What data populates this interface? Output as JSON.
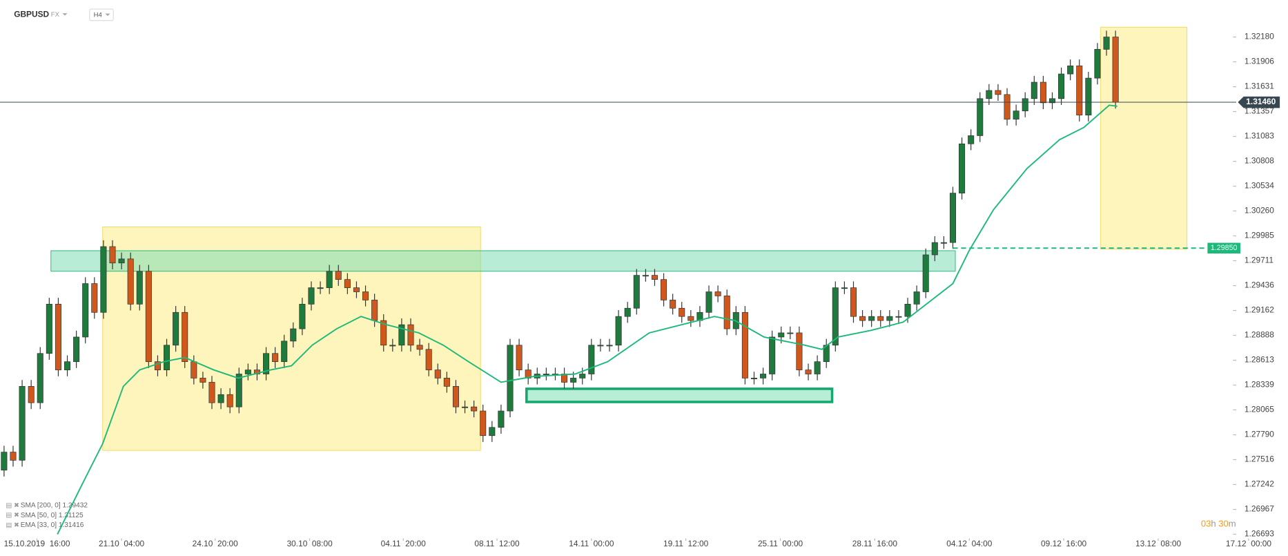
{
  "header": {
    "symbol": "GBPUSD",
    "market": "FX",
    "interval": "H4"
  },
  "chart_data": {
    "type": "candlestick",
    "open": [
      1.274,
      1.27599,
      1.27509,
      1.28325,
      1.28144,
      1.28688,
      1.29232,
      1.28506,
      1.28597,
      1.28869,
      1.29459,
      1.29141,
      1.29867,
      1.29686,
      1.29731,
      1.29232,
      1.29595,
      1.28597,
      1.28506,
      1.28779,
      1.29141,
      1.28597,
      1.28416,
      1.2837,
      1.28144,
      1.28234,
      1.28098,
      1.28461,
      1.28506,
      1.28461,
      1.28688,
      1.28597,
      1.28824,
      1.2896,
      1.29232,
      1.29413,
      1.29413,
      1.29595,
      1.29504,
      1.29413,
      1.29368,
      1.29277,
      1.29051,
      1.28779,
      1.28779,
      1.29005,
      1.28779,
      1.28733,
      1.28506,
      1.28416,
      1.28325,
      1.28098,
      1.28098,
      1.28053,
      1.27781,
      1.27872,
      1.28053,
      1.28779,
      1.28506,
      1.28416,
      1.28461,
      1.28461,
      1.28461,
      1.2837,
      1.28416,
      1.28461,
      1.28779,
      1.28779,
      1.28779,
      1.29096,
      1.29187,
      1.2955,
      1.2955,
      1.29504,
      1.29277,
      1.29187,
      1.29096,
      1.29051,
      1.29141,
      1.29368,
      1.29323,
      1.2896,
      1.29141,
      1.28416,
      1.28416,
      1.28461,
      1.28869,
      1.28915,
      1.28915,
      1.28506,
      1.28461,
      1.28597,
      1.28779,
      1.29413,
      1.29413,
      1.29096,
      1.29051,
      1.29096,
      1.29051,
      1.29096,
      1.29096,
      1.29232,
      1.29368,
      1.29776,
      1.29912,
      1.29912,
      1.30457,
      1.31001,
      1.31091,
      1.315,
      1.3159,
      1.31545,
      1.31273,
      1.31364,
      1.315,
      1.31681,
      1.31454,
      1.315,
      1.31772,
      1.31862,
      1.31318,
      1.31726,
      1.32044,
      1.3218
    ],
    "high": [
      1.27669,
      1.27669,
      1.28395,
      1.28395,
      1.28758,
      1.29302,
      1.29302,
      1.28667,
      1.28939,
      1.29529,
      1.29529,
      1.29937,
      1.29937,
      1.29801,
      1.29801,
      1.29665,
      1.29665,
      1.28667,
      1.28849,
      1.29211,
      1.29211,
      1.28667,
      1.28486,
      1.2844,
      1.28304,
      1.28304,
      1.28531,
      1.28576,
      1.28576,
      1.28758,
      1.28758,
      1.28894,
      1.2903,
      1.29302,
      1.29483,
      1.29483,
      1.29665,
      1.29665,
      1.29574,
      1.29483,
      1.29438,
      1.29347,
      1.29121,
      1.28849,
      1.29075,
      1.29075,
      1.28849,
      1.28803,
      1.28576,
      1.28486,
      1.28395,
      1.28168,
      1.28168,
      1.28123,
      1.27942,
      1.28123,
      1.28849,
      1.28849,
      1.28576,
      1.28531,
      1.28531,
      1.28531,
      1.28531,
      1.28486,
      1.28531,
      1.28849,
      1.28849,
      1.28849,
      1.29166,
      1.29257,
      1.2962,
      1.2962,
      1.2962,
      1.29574,
      1.29347,
      1.29257,
      1.29166,
      1.29211,
      1.29438,
      1.29438,
      1.29393,
      1.29211,
      1.29211,
      1.28486,
      1.28531,
      1.28939,
      1.28985,
      1.28985,
      1.28985,
      1.28576,
      1.28667,
      1.28849,
      1.29483,
      1.29483,
      1.29483,
      1.29166,
      1.29166,
      1.29166,
      1.29166,
      1.29166,
      1.29302,
      1.29438,
      1.29846,
      1.29982,
      1.29982,
      1.30527,
      1.31071,
      1.31161,
      1.3157,
      1.3166,
      1.3166,
      1.31615,
      1.31434,
      1.3157,
      1.31751,
      1.31751,
      1.3157,
      1.31842,
      1.31932,
      1.31932,
      1.31796,
      1.32114,
      1.3225,
      1.3225
    ],
    "low": [
      1.2733,
      1.27439,
      1.27439,
      1.28074,
      1.28074,
      1.28618,
      1.28436,
      1.28436,
      1.28527,
      1.28799,
      1.29071,
      1.29071,
      1.29616,
      1.29616,
      1.29162,
      1.29162,
      1.28527,
      1.28436,
      1.28436,
      1.28709,
      1.28527,
      1.28346,
      1.283,
      1.28074,
      1.28074,
      1.28028,
      1.28028,
      1.28391,
      1.28391,
      1.28391,
      1.28527,
      1.28527,
      1.28754,
      1.2889,
      1.29162,
      1.29343,
      1.29343,
      1.29434,
      1.29343,
      1.29298,
      1.29207,
      1.28981,
      1.28709,
      1.28709,
      1.28709,
      1.28709,
      1.28663,
      1.28436,
      1.28346,
      1.28255,
      1.28028,
      1.28028,
      1.27983,
      1.27711,
      1.27711,
      1.27802,
      1.27983,
      1.28436,
      1.28346,
      1.28346,
      1.28391,
      1.28391,
      1.283,
      1.283,
      1.28346,
      1.28391,
      1.28709,
      1.28709,
      1.28709,
      1.29026,
      1.29117,
      1.2948,
      1.29434,
      1.29207,
      1.29117,
      1.29026,
      1.28981,
      1.28981,
      1.29071,
      1.29253,
      1.2889,
      1.2889,
      1.28346,
      1.28346,
      1.28346,
      1.28391,
      1.28799,
      1.28845,
      1.28436,
      1.28391,
      1.28391,
      1.28527,
      1.28709,
      1.29343,
      1.29026,
      1.28981,
      1.28981,
      1.28981,
      1.28981,
      1.29026,
      1.29026,
      1.29162,
      1.29298,
      1.29706,
      1.29842,
      1.29842,
      1.30387,
      1.30931,
      1.31021,
      1.3143,
      1.31475,
      1.31203,
      1.31203,
      1.31294,
      1.3143,
      1.31384,
      1.31384,
      1.3143,
      1.31702,
      1.31248,
      1.31248,
      1.31656,
      1.31974,
      1.3139
    ],
    "close": [
      1.27599,
      1.27509,
      1.28325,
      1.28144,
      1.28688,
      1.29232,
      1.28506,
      1.28597,
      1.28869,
      1.29459,
      1.29141,
      1.29867,
      1.29686,
      1.29731,
      1.29232,
      1.29595,
      1.28597,
      1.28506,
      1.28779,
      1.29141,
      1.28597,
      1.28416,
      1.2837,
      1.28144,
      1.28234,
      1.28098,
      1.28461,
      1.28506,
      1.28461,
      1.28688,
      1.28597,
      1.28824,
      1.2896,
      1.29232,
      1.29413,
      1.29413,
      1.29595,
      1.29504,
      1.29413,
      1.29368,
      1.29277,
      1.29051,
      1.28779,
      1.28779,
      1.29005,
      1.28779,
      1.28733,
      1.28506,
      1.28416,
      1.28325,
      1.28098,
      1.28098,
      1.28053,
      1.27781,
      1.27872,
      1.28053,
      1.28779,
      1.28506,
      1.28416,
      1.28461,
      1.28461,
      1.28461,
      1.2837,
      1.28416,
      1.28461,
      1.28779,
      1.28779,
      1.28779,
      1.29096,
      1.29187,
      1.2955,
      1.2955,
      1.29504,
      1.29277,
      1.29187,
      1.29096,
      1.29051,
      1.29141,
      1.29368,
      1.29323,
      1.2896,
      1.29141,
      1.28416,
      1.28416,
      1.28461,
      1.28869,
      1.28915,
      1.28915,
      1.28506,
      1.28461,
      1.28597,
      1.28779,
      1.29413,
      1.29413,
      1.29096,
      1.29051,
      1.29096,
      1.29051,
      1.29096,
      1.29096,
      1.29232,
      1.29368,
      1.29776,
      1.29912,
      1.29912,
      1.30457,
      1.31001,
      1.31091,
      1.315,
      1.3159,
      1.31545,
      1.31273,
      1.31364,
      1.315,
      1.31681,
      1.31454,
      1.315,
      1.31772,
      1.31862,
      1.31318,
      1.31726,
      1.32044,
      1.3218,
      1.3146
    ],
    "up_color": "#1f7a3d",
    "down_color": "#d0581c",
    "ma": {
      "color": "#1db97a",
      "x": [
        5.9,
        8.6,
        10.9,
        13.2,
        15,
        17.7,
        20,
        23.2,
        25.9,
        29.5,
        31.8,
        34.1,
        36.8,
        39.5,
        42.3,
        45.9,
        48.6,
        51.4,
        55,
        58.6,
        63.2,
        66.8,
        71.4,
        75,
        78.6,
        80.9,
        84.1,
        88.6,
        90.5,
        92.3,
        95.9,
        99.5,
        102.3,
        105,
        106.8,
        109.5,
        113.2,
        116.8,
        119.5,
        122.3,
        123.2
      ],
      "values": [
        1.26692,
        1.27237,
        1.2769,
        1.28325,
        1.28506,
        1.28597,
        1.28643,
        1.28506,
        1.28416,
        1.28506,
        1.28552,
        1.28779,
        1.2896,
        1.29096,
        1.29005,
        1.28915,
        1.28779,
        1.28597,
        1.2837,
        1.28434,
        1.28461,
        1.28597,
        1.28915,
        1.29005,
        1.29096,
        1.29051,
        1.28869,
        1.28779,
        1.28733,
        1.28869,
        1.28942,
        1.29033,
        1.2925,
        1.29459,
        1.29822,
        1.30275,
        1.30729,
        1.31046,
        1.31182,
        1.31427,
        1.31416
      ]
    },
    "xlim": [
      -0.45,
      136.36
    ],
    "xticks": [
      {
        "value": 3.64,
        "label": "15.10.2019  16:00"
      },
      {
        "value": 13,
        "label": "21.10  04:00"
      },
      {
        "value": 23.36,
        "label": "24.10  20:00"
      },
      {
        "value": 33.82,
        "label": "30.10  08:00"
      },
      {
        "value": 44.18,
        "label": "04.11  20:00"
      },
      {
        "value": 54.55,
        "label": "08.11  12:00"
      },
      {
        "value": 65,
        "label": "14.11  00:00"
      },
      {
        "value": 75.45,
        "label": "19.11  12:00"
      },
      {
        "value": 85.91,
        "label": "25.11  00:00"
      },
      {
        "value": 96.36,
        "label": "28.11  16:00"
      },
      {
        "value": 106.82,
        "label": "04.12  04:00"
      },
      {
        "value": 117.27,
        "label": "09.12  16:00"
      },
      {
        "value": 127.73,
        "label": "13.12  08:00"
      },
      {
        "value": 137.73,
        "label": "17.12  00:00"
      }
    ],
    "ylim": [
      1.26647,
      1.32588
    ],
    "yticks": [
      {
        "value": 1.3218,
        "label": "1.32180"
      },
      1.31906,
      1.31631,
      1.31357,
      1.31083,
      1.30808,
      1.30534,
      {
        "value": 1.3026,
        "label": "1.30260"
      },
      1.29985,
      1.29711,
      1.29436,
      1.29162,
      1.28888,
      1.28613,
      1.28339,
      1.28065,
      {
        "value": 1.2779,
        "label": "1.27790"
      },
      1.27516,
      1.27242,
      1.26967,
      1.26693
    ],
    "price_lines": [
      {
        "value": 1.3146,
        "label": "1.31460",
        "color": "#37474f"
      },
      {
        "value": 1.2985,
        "label": "1.29850",
        "color": "#1db97a"
      }
    ],
    "indicators": [
      "SMA [200, 0] 1.29432",
      "SMA [50, 0] 1.31125",
      "EMA [33, 0] 1.31416"
    ],
    "timer": [
      "03",
      "h",
      "30",
      "m"
    ]
  }
}
